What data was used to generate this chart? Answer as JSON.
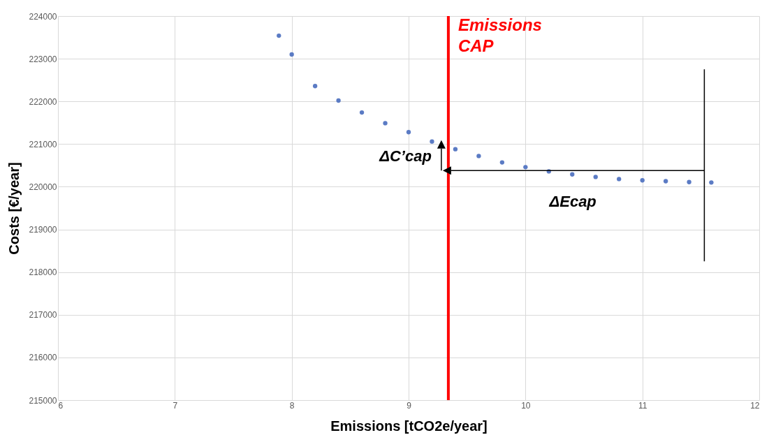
{
  "chart_data": {
    "type": "scatter",
    "xlabel": "Emissions [tCO2e/year]",
    "ylabel": "Costs [€/year]",
    "x": [
      7.89,
      8.0,
      8.2,
      8.4,
      8.6,
      8.8,
      9.0,
      9.2,
      9.4,
      9.6,
      9.8,
      10.0,
      10.2,
      10.4,
      10.6,
      10.8,
      11.0,
      11.2,
      11.4,
      11.59
    ],
    "series": [
      {
        "color": "#5b7bc4",
        "values": [
          223540,
          223100,
          222360,
          222020,
          221740,
          221490,
          221280,
          221060,
          220880,
          220720,
          220570,
          220460,
          220360,
          220290,
          220230,
          220180,
          220150,
          220130,
          220110,
          220100
        ]
      }
    ],
    "xlim": [
      6,
      12
    ],
    "xticks": [
      6,
      7,
      8,
      9,
      10,
      11,
      12
    ],
    "ylim": [
      215000,
      224000
    ],
    "yticks": [
      215000,
      216000,
      217000,
      218000,
      219000,
      220000,
      221000,
      222000,
      223000,
      224000
    ],
    "grid": true,
    "marker": "circle",
    "ref_lines": [
      {
        "axis": "x",
        "value": 9.34,
        "label": "Emissions CAP",
        "color": "#ff0000"
      }
    ],
    "annotations": [
      "ΔC’cap",
      "ΔEcap"
    ]
  }
}
